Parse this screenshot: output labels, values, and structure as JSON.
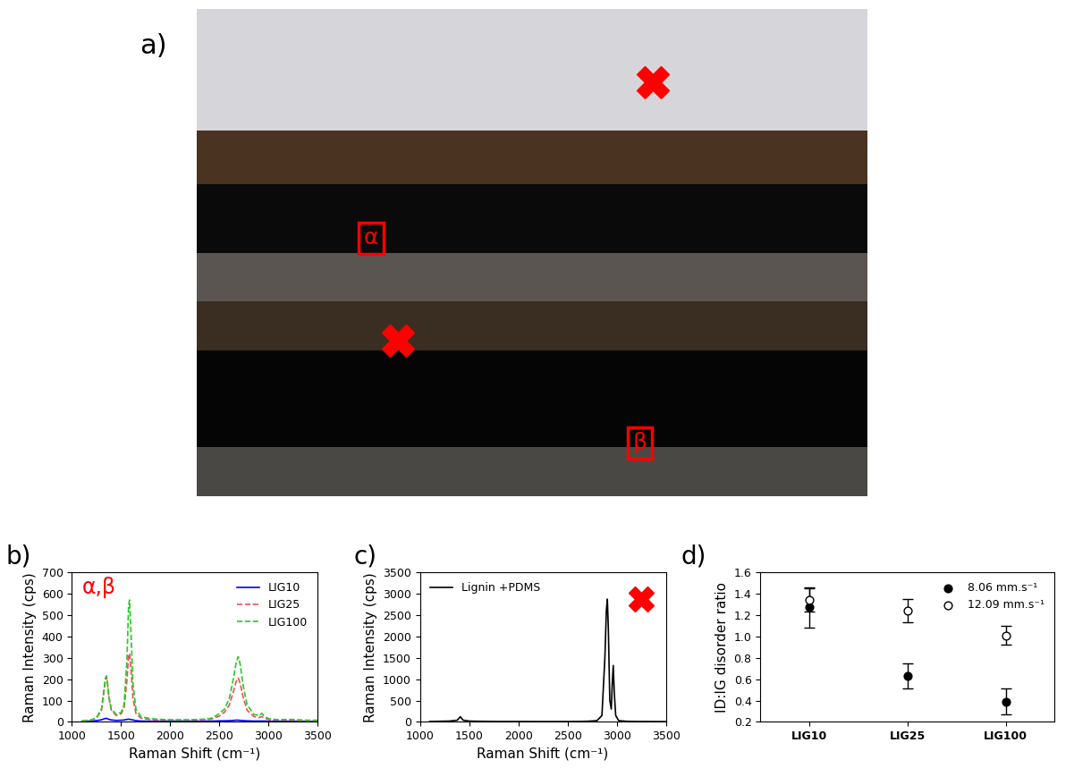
{
  "image": {
    "label": "a)",
    "boxed_labels": [
      "α",
      "β"
    ]
  },
  "chart_data": [
    {
      "type": "line",
      "annotations": [
        "b)",
        "α,β"
      ],
      "x_label": "Raman Shift (cm⁻¹)",
      "y_label": "Raman Intensity (cps)",
      "x": [
        1100,
        1150,
        1200,
        1250,
        1300,
        1325,
        1340,
        1350,
        1360,
        1375,
        1400,
        1450,
        1500,
        1530,
        1560,
        1575,
        1585,
        1600,
        1620,
        1650,
        1700,
        1800,
        1900,
        2000,
        2100,
        2200,
        2300,
        2400,
        2450,
        2500,
        2550,
        2600,
        2640,
        2670,
        2690,
        2710,
        2740,
        2780,
        2850,
        2900,
        2930,
        2960,
        3000,
        3100,
        3200,
        3300,
        3400,
        3500
      ],
      "series": [
        {
          "name": "LIG10",
          "color": "#0000ff",
          "line_style": "solid",
          "values": [
            2,
            3,
            4,
            6,
            10,
            14,
            16,
            17,
            15,
            12,
            9,
            7,
            8,
            9,
            12,
            13,
            12,
            11,
            9,
            6,
            4,
            3,
            3,
            3,
            3,
            3,
            3,
            4,
            4,
            5,
            5,
            6,
            7,
            8,
            8,
            7,
            6,
            5,
            4,
            4,
            4,
            4,
            3,
            3,
            3,
            3,
            2,
            2
          ]
        },
        {
          "name": "LIG25",
          "color": "#ee5050",
          "line_style": "dashed",
          "values": [
            3,
            5,
            8,
            18,
            55,
            140,
            195,
            210,
            185,
            115,
            55,
            30,
            38,
            65,
            200,
            310,
            320,
            250,
            110,
            40,
            18,
            10,
            8,
            8,
            8,
            8,
            10,
            12,
            18,
            28,
            45,
            80,
            140,
            190,
            205,
            180,
            115,
            55,
            25,
            20,
            25,
            18,
            10,
            8,
            8,
            6,
            5,
            5
          ]
        },
        {
          "name": "LIG100",
          "color": "#22cc22",
          "line_style": "dashed",
          "values": [
            5,
            8,
            10,
            20,
            60,
            150,
            205,
            215,
            190,
            120,
            60,
            35,
            45,
            80,
            300,
            540,
            570,
            420,
            180,
            60,
            25,
            15,
            12,
            10,
            10,
            10,
            12,
            15,
            25,
            40,
            60,
            110,
            200,
            280,
            305,
            270,
            170,
            80,
            35,
            30,
            40,
            25,
            15,
            10,
            12,
            10,
            8,
            8
          ]
        }
      ],
      "xlim": [
        1000,
        3500
      ],
      "xticks": [
        1000,
        1500,
        2000,
        2500,
        3000,
        3500
      ],
      "ylim": [
        0,
        700
      ],
      "yticks": [
        0,
        100,
        200,
        300,
        400,
        500,
        600,
        700
      ],
      "legend": "upper right"
    },
    {
      "type": "line",
      "annotations": [
        "c)"
      ],
      "x_label": "Raman Shift (cm⁻¹)",
      "y_label": "Raman Intensity (cps)",
      "x": [
        1100,
        1200,
        1300,
        1380,
        1410,
        1440,
        1500,
        1600,
        1800,
        2000,
        2200,
        2400,
        2600,
        2700,
        2800,
        2850,
        2880,
        2895,
        2905,
        2915,
        2930,
        2945,
        2955,
        2965,
        2975,
        2990,
        3020,
        3100,
        3200,
        3300,
        3400,
        3500
      ],
      "series": [
        {
          "name": "Lignin +PDMS",
          "color": "#000000",
          "line_style": "solid",
          "values": [
            10,
            15,
            20,
            40,
            120,
            40,
            20,
            15,
            10,
            10,
            8,
            8,
            10,
            15,
            30,
            150,
            1500,
            2600,
            2870,
            2200,
            500,
            300,
            900,
            1320,
            700,
            150,
            30,
            15,
            10,
            10,
            8,
            8
          ]
        }
      ],
      "xlim": [
        1000,
        3500
      ],
      "xticks": [
        1000,
        1500,
        2000,
        2500,
        3000,
        3500
      ],
      "ylim": [
        0,
        3500
      ],
      "yticks": [
        0,
        500,
        1000,
        1500,
        2000,
        2500,
        3000,
        3500
      ],
      "legend": "upper left"
    },
    {
      "type": "scatter",
      "annotations": [
        "d)"
      ],
      "y_label": "ID:IG disorder ratio",
      "categories": [
        "LIG10",
        "LIG25",
        "LIG100"
      ],
      "series": [
        {
          "name": "8.06 mm.s⁻¹",
          "color": "#000000",
          "marker": "circle",
          "values": [
            1.27,
            0.63,
            0.39
          ],
          "errors": [
            0.19,
            0.12,
            0.12
          ]
        },
        {
          "name": "12.09 mm.s⁻¹",
          "color": "#ffffff",
          "marker": "circle",
          "values": [
            1.34,
            1.24,
            1.01
          ],
          "errors": [
            0.11,
            0.11,
            0.09
          ]
        }
      ],
      "ylim": [
        0.2,
        1.6
      ],
      "yticks": [
        0.2,
        0.4,
        0.6,
        0.8,
        1.0,
        1.2,
        1.4,
        1.6
      ],
      "legend": "upper right"
    }
  ]
}
